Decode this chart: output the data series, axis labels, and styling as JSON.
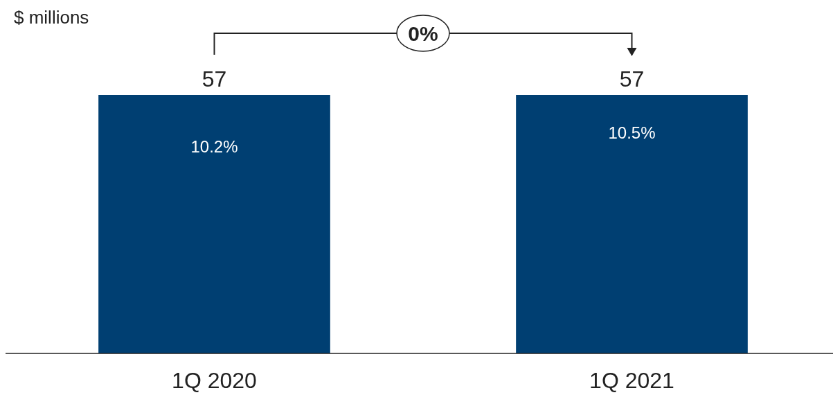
{
  "chart_data": {
    "type": "bar",
    "ylabel": "$ millions",
    "categories": [
      "1Q 2020",
      "1Q 2021"
    ],
    "values": [
      57,
      57
    ],
    "color": "#003f72",
    "data_labels": true,
    "annotations": [
      "10.2%",
      "10.5%",
      "0%"
    ]
  }
}
